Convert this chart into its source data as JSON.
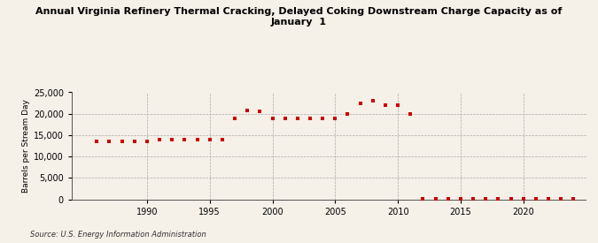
{
  "title": "Annual Virginia Refinery Thermal Cracking, Delayed Coking Downstream Charge Capacity as of\nJanuary  1",
  "ylabel": "Barrels per Stream Day",
  "source": "Source: U.S. Energy Information Administration",
  "background_color": "#f5f0e8",
  "plot_bg_color": "#f5f0e8",
  "marker_color": "#cc0000",
  "years": [
    1986,
    1987,
    1988,
    1989,
    1990,
    1991,
    1992,
    1993,
    1994,
    1995,
    1996,
    1997,
    1998,
    1999,
    2000,
    2001,
    2002,
    2003,
    2004,
    2005,
    2006,
    2007,
    2008,
    2009,
    2010,
    2011,
    2012,
    2013,
    2014,
    2015,
    2016,
    2017,
    2018,
    2019,
    2020,
    2021,
    2022,
    2023,
    2024
  ],
  "values": [
    13500,
    13500,
    13500,
    13500,
    13500,
    14000,
    14000,
    14000,
    14000,
    14000,
    14000,
    19000,
    20700,
    20500,
    19000,
    19000,
    19000,
    19000,
    19000,
    19000,
    20000,
    22500,
    23000,
    22000,
    22000,
    20000,
    200,
    200,
    200,
    200,
    200,
    200,
    200,
    200,
    200,
    200,
    200,
    200,
    200
  ],
  "ylim": [
    0,
    25000
  ],
  "yticks": [
    0,
    5000,
    10000,
    15000,
    20000,
    25000
  ],
  "xlim": [
    1984,
    2025
  ],
  "xticks": [
    1990,
    1995,
    2000,
    2005,
    2010,
    2015,
    2020
  ]
}
